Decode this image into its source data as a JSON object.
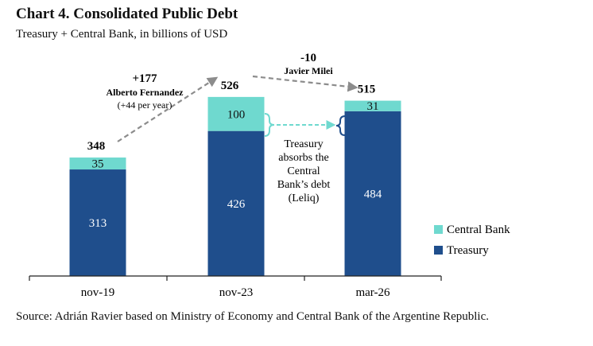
{
  "chart_data": {
    "type": "bar",
    "stacked": true,
    "title": "Chart 4. Consolidated Public Debt",
    "subtitle": "Treasury + Central Bank, in billions of USD",
    "categories": [
      "nov-19",
      "nov-23",
      "mar-26"
    ],
    "series": [
      {
        "name": "Treasury",
        "values": [
          313,
          426,
          484
        ],
        "color": "#1f4e8c"
      },
      {
        "name": "Central Bank",
        "values": [
          35,
          100,
          31
        ],
        "color": "#6fd9cf"
      }
    ],
    "totals": [
      "348",
      "526",
      "515"
    ],
    "ylim": [
      0,
      600
    ],
    "grid": false,
    "legend": "right",
    "annotations": {
      "fernandez": {
        "delta": "+177",
        "name": "Alberto Fernandez",
        "note": "(+44 per year)"
      },
      "milei": {
        "delta": "-10",
        "name": "Javier Milei"
      },
      "leliq": [
        "Treasury",
        "absorbs the",
        "Central",
        "Bank’s debt",
        "(Leliq)"
      ]
    },
    "source": "Source: Adrián Ravier based on Ministry of Economy and Central Bank of the Argentine Republic."
  }
}
